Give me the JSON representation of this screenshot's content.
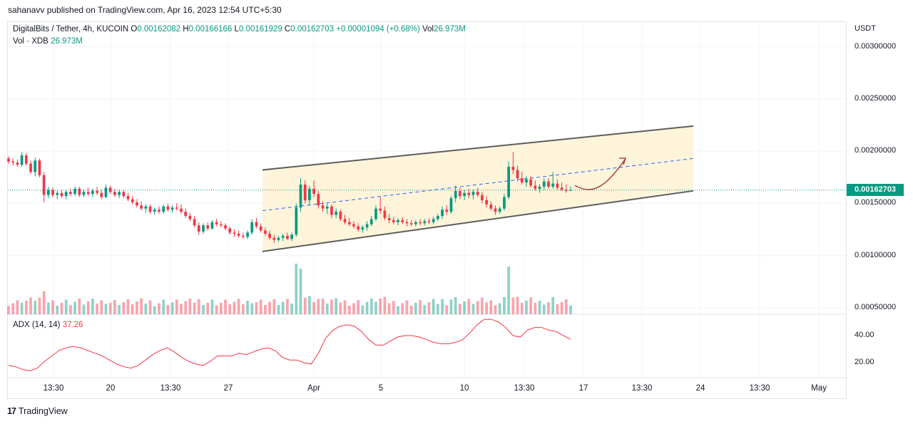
{
  "publisher": "sahanavv published on TradingView.com, Apr 16, 2023 12:54 UTC+5:30",
  "legend": {
    "symbol": "DigitalBits / Tether, 4h, KUCOIN",
    "o_label": "O",
    "o_value": "0.00162082",
    "h_label": "H",
    "h_value": "0.00166166",
    "l_label": "L",
    "l_value": "0.00161929",
    "c_label": "C",
    "c_value": "0.00162703",
    "change": "+0.00001094 (+0.68%)",
    "vol_label": "Vol",
    "vol_value": "26.973M",
    "vol_line_label": "Vol · XDB",
    "vol_line_value": "26.973M",
    "adx_label": "ADX (14, 14)",
    "adx_value": "37.26"
  },
  "price_axis": {
    "currency": "USDT",
    "ticks": [
      "0.00300000",
      "0.00250000",
      "0.00200000",
      "0.00150000",
      "0.00100000",
      "0.00050000"
    ],
    "last_price": "0.00162703"
  },
  "adx_axis": {
    "ticks": [
      "40.00",
      "20.00"
    ]
  },
  "time_axis": {
    "ticks": [
      "13:30",
      "20",
      "13:30",
      "27",
      "Apr",
      "5",
      "10",
      "13:30",
      "17",
      "13:30",
      "24",
      "13:30",
      "May"
    ]
  },
  "brand": {
    "logo_mark": "17",
    "logo_text": "TradingView"
  },
  "colors": {
    "up": "#089981",
    "down": "#f23645",
    "channel_fill": "#fdf3d6",
    "channel_line": "#5d5d5d",
    "midline": "#2962ff",
    "adx_line": "#f23645",
    "arrow": "#a52a2a"
  },
  "chart_data": {
    "type": "candlestick",
    "symbol": "XDB/USDT",
    "timeframe": "4h",
    "y_price_range": [
      0.0004,
      0.0031
    ],
    "last_close": 0.00162703,
    "price_series": [
      [
        0.00193,
        0.00195,
        0.00188,
        0.0019
      ],
      [
        0.0019,
        0.00193,
        0.00186,
        0.00189
      ],
      [
        0.00189,
        0.00192,
        0.00185,
        0.00187
      ],
      [
        0.00187,
        0.00199,
        0.00185,
        0.00196
      ],
      [
        0.00196,
        0.00198,
        0.00186,
        0.00188
      ],
      [
        0.00188,
        0.00191,
        0.00178,
        0.0018
      ],
      [
        0.0018,
        0.00194,
        0.00176,
        0.00191
      ],
      [
        0.00191,
        0.00193,
        0.00175,
        0.00177
      ],
      [
        0.00177,
        0.0018,
        0.00151,
        0.00158
      ],
      [
        0.00158,
        0.00166,
        0.00155,
        0.00163
      ],
      [
        0.00163,
        0.00165,
        0.00156,
        0.00158
      ],
      [
        0.00158,
        0.00162,
        0.00154,
        0.0016
      ],
      [
        0.0016,
        0.00163,
        0.00155,
        0.00157
      ],
      [
        0.00157,
        0.00163,
        0.00154,
        0.00161
      ],
      [
        0.00161,
        0.00164,
        0.00157,
        0.00159
      ],
      [
        0.00159,
        0.00166,
        0.00157,
        0.00164
      ],
      [
        0.00164,
        0.00166,
        0.00156,
        0.00158
      ],
      [
        0.00158,
        0.00163,
        0.00156,
        0.00161
      ],
      [
        0.00161,
        0.00165,
        0.00157,
        0.00159
      ],
      [
        0.00159,
        0.00164,
        0.00156,
        0.00162
      ],
      [
        0.00162,
        0.00166,
        0.00158,
        0.0016
      ],
      [
        0.0016,
        0.00163,
        0.00154,
        0.00156
      ],
      [
        0.00156,
        0.00168,
        0.00155,
        0.00165
      ],
      [
        0.00165,
        0.00167,
        0.00159,
        0.00161
      ],
      [
        0.00161,
        0.00164,
        0.00156,
        0.00158
      ],
      [
        0.00158,
        0.00163,
        0.00155,
        0.00161
      ],
      [
        0.00161,
        0.00163,
        0.00155,
        0.00157
      ],
      [
        0.00157,
        0.0016,
        0.00152,
        0.00154
      ],
      [
        0.00154,
        0.00157,
        0.00149,
        0.00151
      ],
      [
        0.00151,
        0.00154,
        0.00146,
        0.00148
      ],
      [
        0.00148,
        0.00152,
        0.00143,
        0.00145
      ],
      [
        0.00145,
        0.00149,
        0.00141,
        0.00147
      ],
      [
        0.00147,
        0.00149,
        0.0014,
        0.00142
      ],
      [
        0.00142,
        0.00146,
        0.00139,
        0.00144
      ],
      [
        0.00144,
        0.00147,
        0.0014,
        0.00142
      ],
      [
        0.00142,
        0.00149,
        0.0014,
        0.00147
      ],
      [
        0.00147,
        0.0015,
        0.00142,
        0.00144
      ],
      [
        0.00144,
        0.00148,
        0.00141,
        0.00146
      ],
      [
        0.00146,
        0.0015,
        0.00143,
        0.00145
      ],
      [
        0.00145,
        0.00149,
        0.0014,
        0.00142
      ],
      [
        0.00142,
        0.00145,
        0.00136,
        0.00138
      ],
      [
        0.00138,
        0.00141,
        0.00133,
        0.00135
      ],
      [
        0.00135,
        0.00138,
        0.00127,
        0.00129
      ],
      [
        0.00129,
        0.00132,
        0.0012,
        0.00123
      ],
      [
        0.00123,
        0.00131,
        0.00121,
        0.00129
      ],
      [
        0.00129,
        0.00132,
        0.00124,
        0.00126
      ],
      [
        0.00126,
        0.00134,
        0.00125,
        0.00132
      ],
      [
        0.00132,
        0.00135,
        0.00128,
        0.0013
      ],
      [
        0.0013,
        0.00133,
        0.00127,
        0.00129
      ],
      [
        0.00129,
        0.00131,
        0.00124,
        0.00126
      ],
      [
        0.00126,
        0.00128,
        0.0012,
        0.00122
      ],
      [
        0.00122,
        0.00125,
        0.00118,
        0.00121
      ],
      [
        0.00121,
        0.00124,
        0.00117,
        0.00119
      ],
      [
        0.00119,
        0.00122,
        0.00116,
        0.00118
      ],
      [
        0.00118,
        0.00124,
        0.00116,
        0.00122
      ],
      [
        0.00122,
        0.00135,
        0.0012,
        0.00132
      ],
      [
        0.00132,
        0.00136,
        0.00126,
        0.00128
      ],
      [
        0.00128,
        0.00131,
        0.00122,
        0.00124
      ],
      [
        0.00124,
        0.00127,
        0.00119,
        0.00121
      ],
      [
        0.00121,
        0.00124,
        0.00115,
        0.00117
      ],
      [
        0.00117,
        0.0012,
        0.00112,
        0.00115
      ],
      [
        0.00115,
        0.00119,
        0.00113,
        0.00117
      ],
      [
        0.00117,
        0.00121,
        0.00114,
        0.00119
      ],
      [
        0.00119,
        0.00122,
        0.00115,
        0.00116
      ],
      [
        0.00116,
        0.00122,
        0.00114,
        0.0012
      ],
      [
        0.0012,
        0.0015,
        0.00118,
        0.00146
      ],
      [
        0.00146,
        0.00174,
        0.00142,
        0.00168
      ],
      [
        0.00168,
        0.00172,
        0.0015,
        0.00153
      ],
      [
        0.00153,
        0.00167,
        0.00148,
        0.00164
      ],
      [
        0.00164,
        0.00172,
        0.00156,
        0.00159
      ],
      [
        0.00159,
        0.00162,
        0.00145,
        0.00148
      ],
      [
        0.00148,
        0.00152,
        0.00142,
        0.00145
      ],
      [
        0.00145,
        0.0015,
        0.0014,
        0.00147
      ],
      [
        0.00147,
        0.00149,
        0.00136,
        0.00139
      ],
      [
        0.00139,
        0.00145,
        0.00136,
        0.00142
      ],
      [
        0.00142,
        0.00144,
        0.00133,
        0.00135
      ],
      [
        0.00135,
        0.00139,
        0.0013,
        0.00132
      ],
      [
        0.00132,
        0.00136,
        0.00128,
        0.0013
      ],
      [
        0.0013,
        0.00133,
        0.00126,
        0.00128
      ],
      [
        0.00128,
        0.00131,
        0.00123,
        0.00125
      ],
      [
        0.00125,
        0.00129,
        0.00122,
        0.00127
      ],
      [
        0.00127,
        0.00133,
        0.00124,
        0.0013
      ],
      [
        0.0013,
        0.00138,
        0.00128,
        0.00135
      ],
      [
        0.00135,
        0.00148,
        0.00133,
        0.00145
      ],
      [
        0.00145,
        0.00156,
        0.0014,
        0.00143
      ],
      [
        0.00143,
        0.00147,
        0.00134,
        0.00136
      ],
      [
        0.00136,
        0.0014,
        0.00131,
        0.00134
      ],
      [
        0.00134,
        0.00137,
        0.0013,
        0.00132
      ],
      [
        0.00132,
        0.00136,
        0.00129,
        0.00134
      ],
      [
        0.00134,
        0.00137,
        0.0013,
        0.00132
      ],
      [
        0.00132,
        0.00135,
        0.00128,
        0.00131
      ],
      [
        0.00131,
        0.00134,
        0.00128,
        0.0013
      ],
      [
        0.0013,
        0.00134,
        0.00128,
        0.00132
      ],
      [
        0.00132,
        0.00135,
        0.00129,
        0.00131
      ],
      [
        0.00131,
        0.00135,
        0.00129,
        0.00133
      ],
      [
        0.00133,
        0.00136,
        0.0013,
        0.00132
      ],
      [
        0.00132,
        0.00137,
        0.0013,
        0.00135
      ],
      [
        0.00135,
        0.0014,
        0.00133,
        0.00138
      ],
      [
        0.00138,
        0.00147,
        0.00135,
        0.00144
      ],
      [
        0.00144,
        0.00148,
        0.00139,
        0.00142
      ],
      [
        0.00142,
        0.00157,
        0.0014,
        0.00155
      ],
      [
        0.00155,
        0.00167,
        0.00151,
        0.00162
      ],
      [
        0.00162,
        0.00165,
        0.00154,
        0.00157
      ],
      [
        0.00157,
        0.00163,
        0.00153,
        0.0016
      ],
      [
        0.0016,
        0.00164,
        0.00155,
        0.00158
      ],
      [
        0.00158,
        0.00163,
        0.00154,
        0.00161
      ],
      [
        0.00161,
        0.00165,
        0.00156,
        0.00158
      ],
      [
        0.00158,
        0.00161,
        0.0015,
        0.00153
      ],
      [
        0.00153,
        0.00157,
        0.00146,
        0.00149
      ],
      [
        0.00149,
        0.00152,
        0.00143,
        0.00145
      ],
      [
        0.00145,
        0.00148,
        0.00139,
        0.00142
      ],
      [
        0.00142,
        0.00147,
        0.0014,
        0.00145
      ],
      [
        0.00145,
        0.00159,
        0.00143,
        0.00156
      ],
      [
        0.00156,
        0.0019,
        0.00154,
        0.00185
      ],
      [
        0.00185,
        0.00199,
        0.00178,
        0.00182
      ],
      [
        0.00182,
        0.00186,
        0.00171,
        0.00174
      ],
      [
        0.00174,
        0.0018,
        0.00168,
        0.0017
      ],
      [
        0.0017,
        0.00176,
        0.00166,
        0.00173
      ],
      [
        0.00173,
        0.00176,
        0.00165,
        0.00167
      ],
      [
        0.00167,
        0.00172,
        0.00162,
        0.00164
      ],
      [
        0.00164,
        0.00168,
        0.0016,
        0.00166
      ],
      [
        0.00166,
        0.00174,
        0.00163,
        0.00171
      ],
      [
        0.00171,
        0.00174,
        0.00164,
        0.00166
      ],
      [
        0.00166,
        0.0018,
        0.00164,
        0.00169
      ],
      [
        0.00169,
        0.00173,
        0.00163,
        0.00165
      ],
      [
        0.00165,
        0.0017,
        0.00162,
        0.00163
      ],
      [
        0.00163,
        0.00168,
        0.0016,
        0.00162
      ],
      [
        0.00162082,
        0.00166166,
        0.00161929,
        0.00162703
      ]
    ],
    "volume_max_M": 250,
    "adx_range": [
      10,
      55
    ],
    "adx_series": [
      18,
      17,
      15,
      14,
      16,
      21,
      25,
      29,
      31,
      32,
      31,
      29,
      27,
      25,
      22,
      19,
      17,
      16,
      18,
      22,
      26,
      29,
      31,
      28,
      24,
      21,
      19,
      18,
      21,
      25,
      25,
      25,
      27,
      26,
      28,
      30,
      31,
      29,
      24,
      22,
      22,
      20,
      19,
      27,
      38,
      44,
      47,
      48,
      47,
      43,
      37,
      33,
      33,
      36,
      39,
      40,
      40,
      39,
      37,
      35,
      34,
      34,
      35,
      37,
      42,
      48,
      52,
      52,
      50,
      46,
      40,
      39,
      44,
      46,
      46,
      44,
      43,
      40,
      37.26
    ],
    "overlays": {
      "channel_upper": [
        [
          0.0,
          0.00182
        ],
        [
          1.0,
          0.00224
        ]
      ],
      "channel_lower": [
        [
          0.0,
          0.00104
        ],
        [
          1.0,
          0.00162
        ]
      ],
      "channel_mid": [
        [
          0.0,
          0.00143
        ],
        [
          1.0,
          0.00193
        ]
      ]
    }
  }
}
